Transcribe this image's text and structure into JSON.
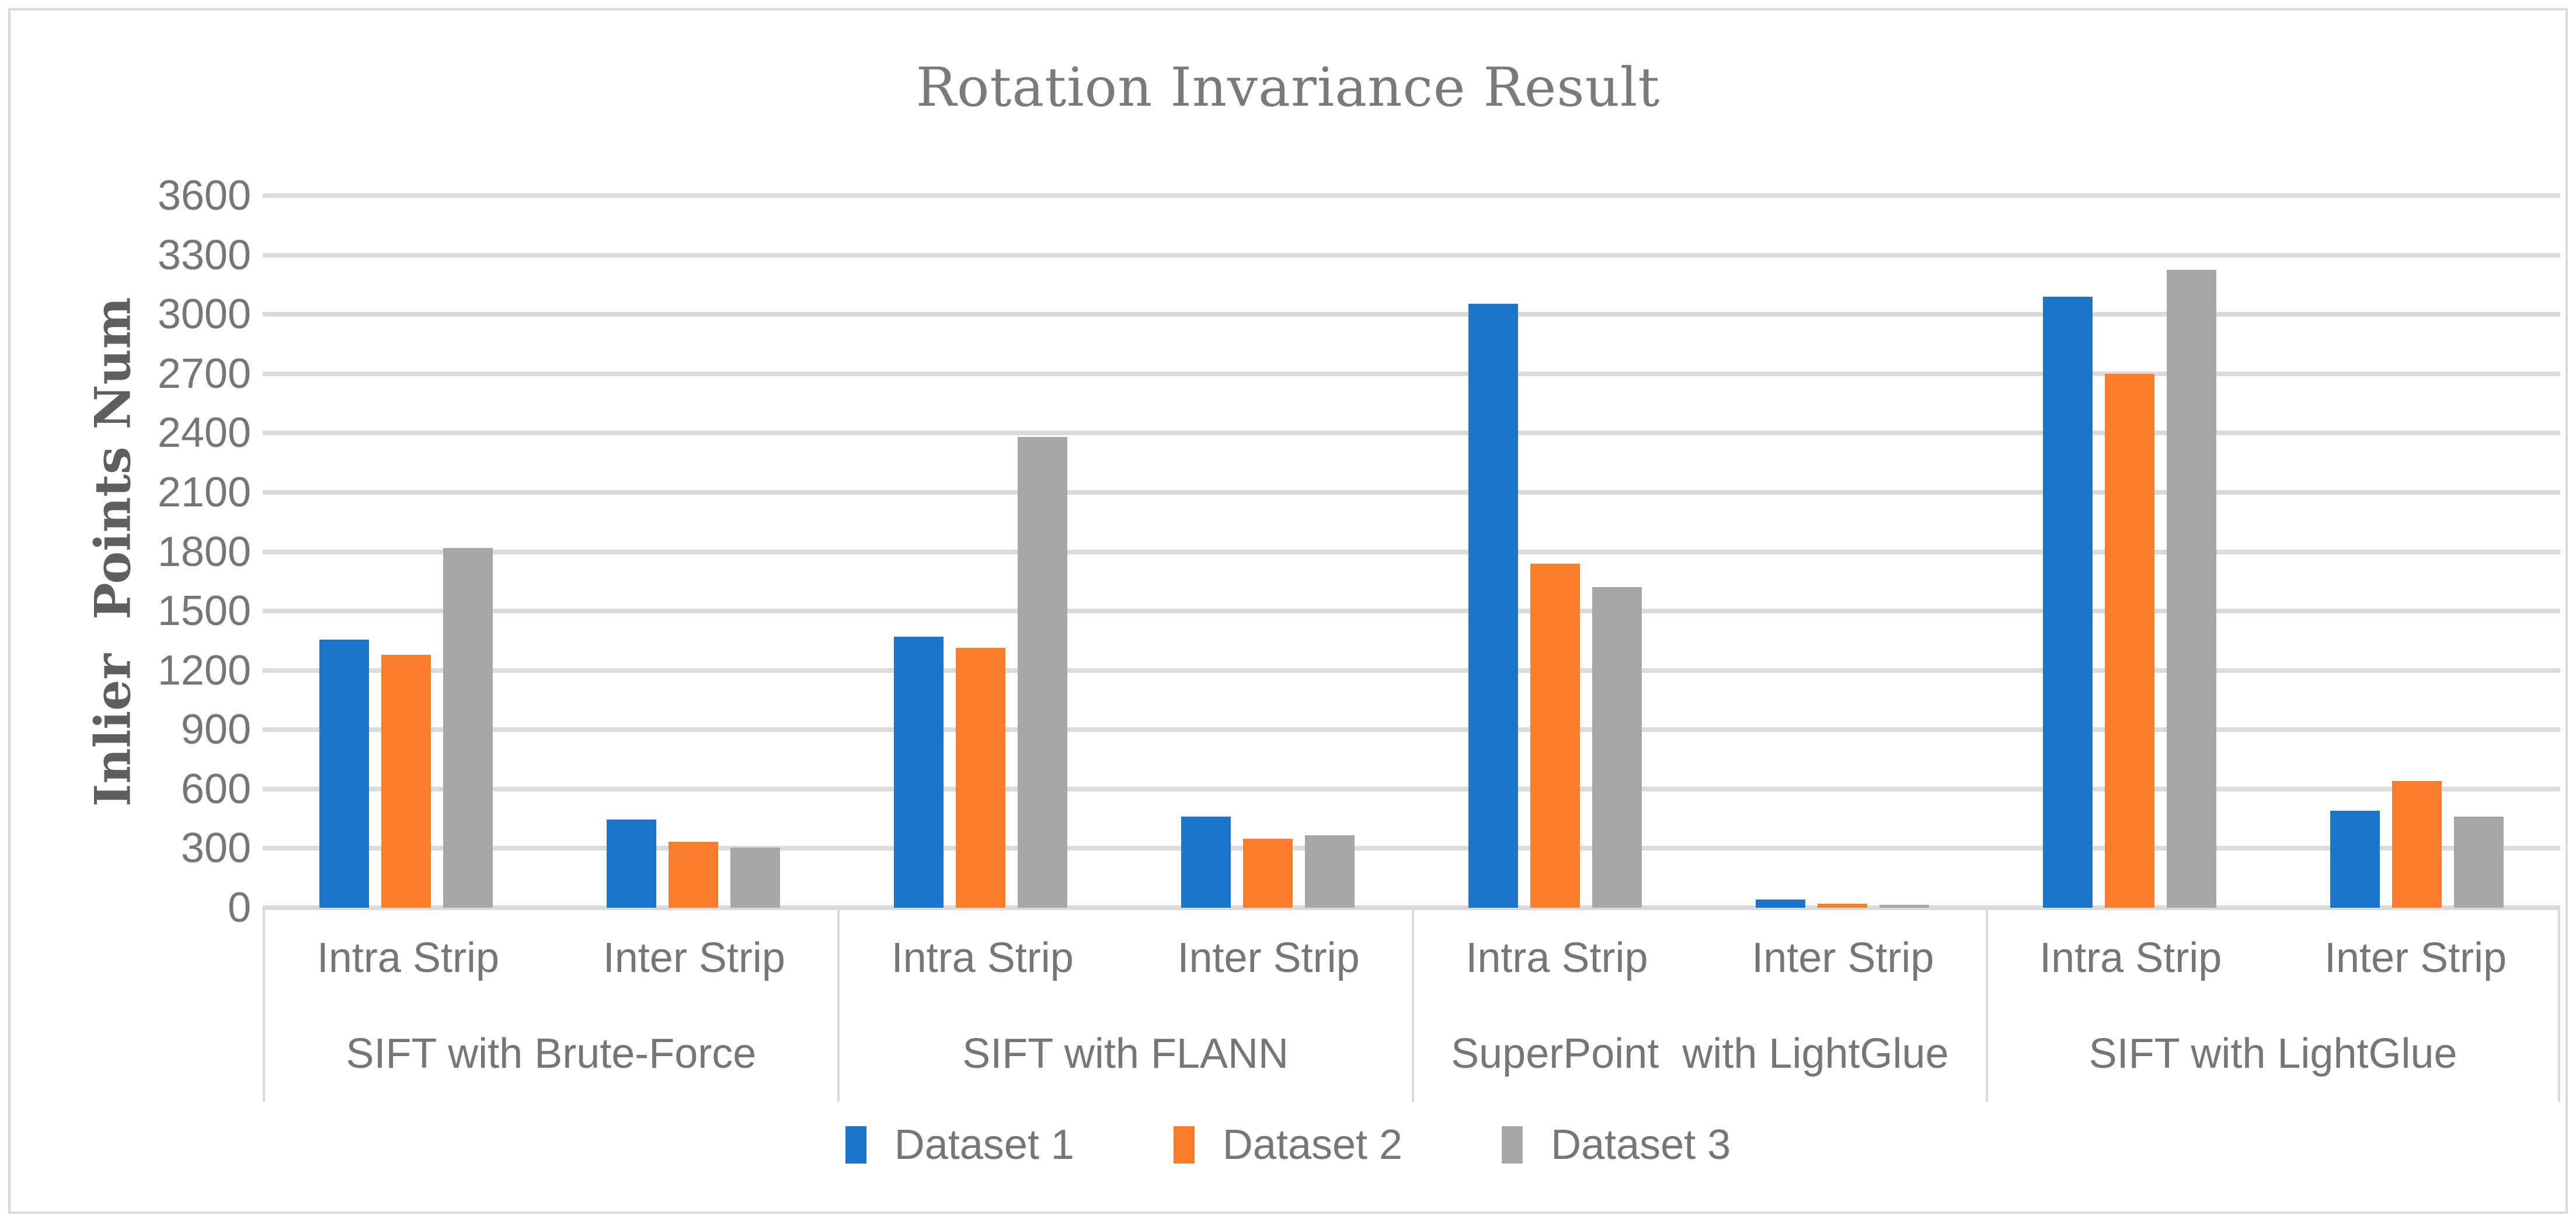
{
  "chart_data": {
    "type": "bar",
    "title": "Rotation Invariance Result",
    "ylabel": "Inlier  Points Num",
    "xlabel": "",
    "ylim": [
      0,
      3600
    ],
    "ytick_step": 300,
    "yticks": [
      0,
      300,
      600,
      900,
      1200,
      1500,
      1800,
      2100,
      2400,
      2700,
      3000,
      3300,
      3600
    ],
    "grid": true,
    "legend_position": "bottom",
    "series": [
      {
        "name": "Dataset 1",
        "color": "#1B75C8"
      },
      {
        "name": "Dataset 2",
        "color": "#FC7D2B"
      },
      {
        "name": "Dataset 3",
        "color": "#A7A7A7"
      }
    ],
    "groups": [
      {
        "label": "SIFT with Brute-Force",
        "clusters": [
          {
            "label": "Intra Strip",
            "values": [
              1355,
              1280,
              1820
            ]
          },
          {
            "label": "Inter Strip",
            "values": [
              445,
              335,
              305
            ]
          }
        ]
      },
      {
        "label": "SIFT with FLANN",
        "clusters": [
          {
            "label": "Intra Strip",
            "values": [
              1370,
              1315,
              2380
            ]
          },
          {
            "label": "Inter Strip",
            "values": [
              460,
              350,
              365
            ]
          }
        ]
      },
      {
        "label": "SuperPoint  with LightGlue",
        "clusters": [
          {
            "label": "Intra Strip",
            "values": [
              3055,
              1740,
              1620
            ]
          },
          {
            "label": "Inter Strip",
            "values": [
              40,
              20,
              15
            ]
          }
        ]
      },
      {
        "label": "SIFT with LightGlue",
        "clusters": [
          {
            "label": "Intra Strip",
            "values": [
              3090,
              2700,
              3225
            ]
          },
          {
            "label": "Inter Strip",
            "values": [
              490,
              640,
              460
            ]
          }
        ]
      }
    ],
    "colors": {
      "gridline": "#DBDBDB",
      "chart_border": "#D9D9D9",
      "axis_text": "#767676",
      "title_text": "#7A7A7A",
      "axis_title_text": "#5F5F5F"
    }
  }
}
